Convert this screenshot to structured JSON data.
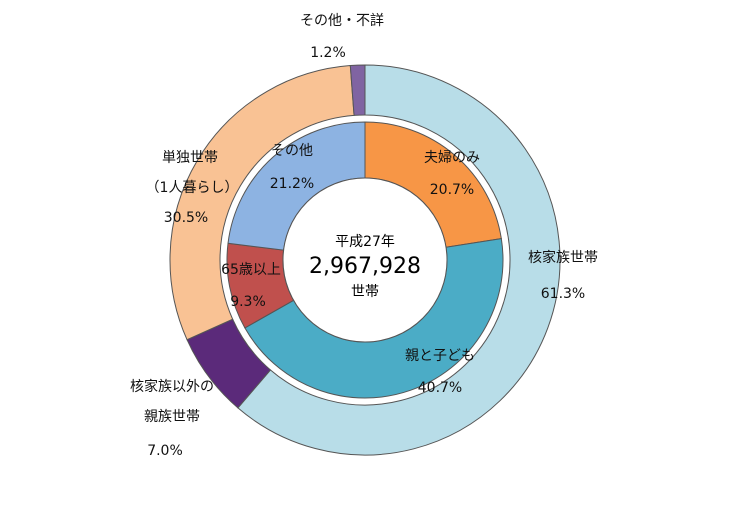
{
  "chart_data": {
    "type": "donut",
    "center": {
      "year_label": "平成27年",
      "total": "2,967,928",
      "unit": "世帯"
    },
    "outer": [
      {
        "name": "核家族世帯",
        "name_lines": [
          "核家族世帯"
        ],
        "value": 61.3,
        "value_label": "61.3%",
        "color": "#b8dde8"
      },
      {
        "name": "核家族以外の親族世帯",
        "name_lines": [
          "核家族以外の",
          "親族世帯"
        ],
        "value": 7.0,
        "value_label": "7.0%",
        "color": "#5b2a7a"
      },
      {
        "name": "単独世帯（1人暮らし）",
        "name_lines": [
          "単独世帯",
          "（1人暮らし）"
        ],
        "value": 30.5,
        "value_label": "30.5%",
        "color": "#f9c294"
      },
      {
        "name": "その他・不詳",
        "name_lines": [
          "その他・不詳"
        ],
        "value": 1.2,
        "value_label": "1.2%",
        "color": "#8064a2"
      }
    ],
    "inner": [
      {
        "name": "夫婦のみ",
        "value": 20.7,
        "value_label": "20.7%",
        "color": "#f79646"
      },
      {
        "name": "親と子ども",
        "value": 40.7,
        "value_label": "40.7%",
        "color": "#4bacc6"
      },
      {
        "name": "65歳以上",
        "value": 9.3,
        "value_label": "9.3%",
        "color": "#c0504d"
      },
      {
        "name": "その他",
        "value": 21.2,
        "value_label": "21.2%",
        "color": "#8db3e2"
      }
    ]
  }
}
